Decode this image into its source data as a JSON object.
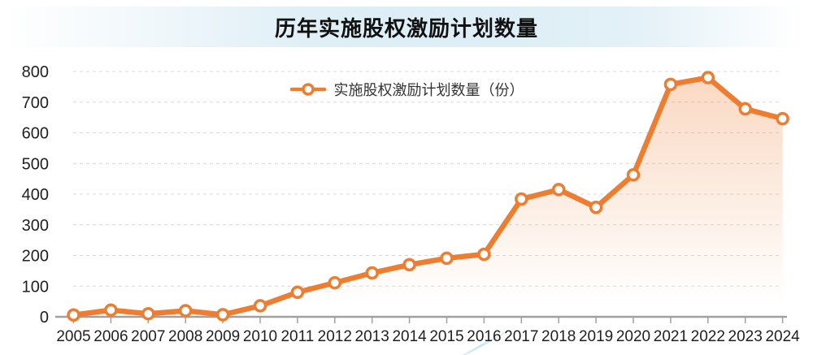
{
  "title": "历年实施股权激励计划数量",
  "legend": {
    "label": "实施股权激励计划数量（份）"
  },
  "colors": {
    "line": "#ED7D31",
    "marker_fill": "#FFFFFF",
    "area_top": "rgba(237,125,49,0.30)",
    "area_bottom": "rgba(237,125,49,0)",
    "grid": "#D8D8D8",
    "axis": "#A0A0A0",
    "tick_text": "#1F1F1F",
    "title_band": "#DAECF5",
    "swoosh": "#BFE0EE"
  },
  "chart_data": {
    "type": "line",
    "title": "历年实施股权激励计划数量",
    "x": [
      "2005",
      "2006",
      "2007",
      "2008",
      "2009",
      "2010",
      "2011",
      "2012",
      "2013",
      "2014",
      "2015",
      "2016",
      "2017",
      "2018",
      "2019",
      "2020",
      "2021",
      "2022",
      "2023",
      "2024"
    ],
    "series": [
      {
        "name": "实施股权激励计划数量（份）",
        "values": [
          6,
          22,
          10,
          20,
          7,
          36,
          80,
          111,
          143,
          170,
          191,
          204,
          384,
          415,
          357,
          463,
          758,
          780,
          678,
          646
        ]
      }
    ],
    "xlabel": "",
    "ylabel": "",
    "ylim": [
      0,
      800
    ],
    "ytick_interval": 100,
    "yticks": [
      "0",
      "100",
      "200",
      "300",
      "400",
      "500",
      "600",
      "700",
      "800"
    ],
    "grid": "horizontal-dashed",
    "legend_position": "top-center",
    "marker": "open-circle",
    "area_fill": "vertical-gradient"
  }
}
